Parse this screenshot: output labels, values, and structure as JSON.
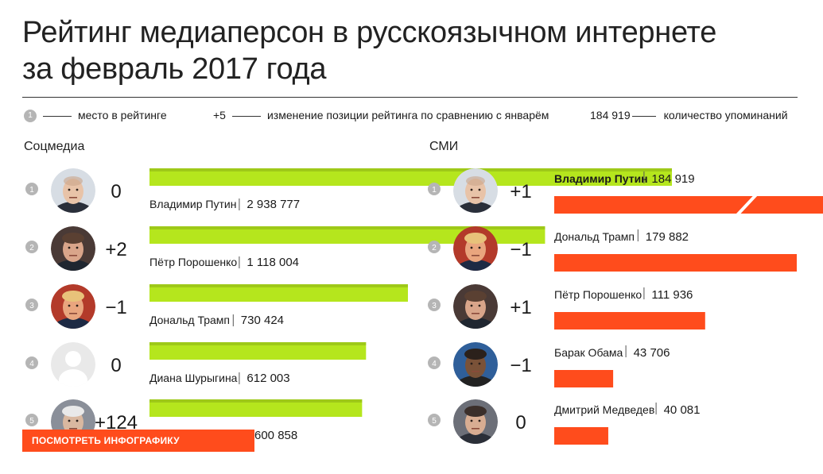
{
  "title": "Рейтинг медиаперсон в русскоязычном интернете за февраль 2017 года",
  "legend": {
    "rank_badge": "1",
    "rank_text": "место в рейтинге",
    "change_example": "+5",
    "change_text": "изменение позиции рейтинга по сравнению с январём",
    "count_example": "184 919",
    "count_text": "количество упоминаний"
  },
  "cta": {
    "label": "ПОСМОТРЕТЬ ИНФОГРАФИКУ ПОЛНОСТЬЮ",
    "arrow": ">>"
  },
  "colors": {
    "social_bar": "#b5e61d",
    "social_bar_shade": "#8fb515",
    "media_bar": "#ff4c1c",
    "badge": "#b5b5b5"
  },
  "chart_data": [
    {
      "type": "bar",
      "title": "Соцмедиа",
      "categories": [
        "Владимир Путин",
        "Пётр Порошенко",
        "Дональд Трамп",
        "Диана Шурыгина",
        ""
      ],
      "ranks": [
        "1",
        "2",
        "3",
        "4",
        "5"
      ],
      "changes": [
        "0",
        "+2",
        "−1",
        "0",
        "+124"
      ],
      "values": [
        2938777,
        1118004,
        730424,
        612003,
        600858
      ],
      "value_labels": [
        "2 938 777",
        "1 118 004",
        "730 424",
        "612 003",
        "600 858"
      ],
      "broken_bars": [
        false,
        false,
        false,
        false,
        false
      ],
      "avatars": [
        "putin-avatar",
        "poroshenko-avatar",
        "trump-avatar",
        "placeholder-avatar",
        "person-avatar"
      ]
    },
    {
      "type": "bar",
      "title": "СМИ",
      "categories": [
        "Владимир Путин",
        "Дональд Трамп",
        "Пётр Порошенко",
        "Барак Обама",
        "Дмитрий Медведев"
      ],
      "ranks": [
        "1",
        "2",
        "3",
        "4",
        "5"
      ],
      "changes": [
        "+1",
        "−1",
        "+1",
        "−1",
        "0"
      ],
      "values": [
        184919,
        179882,
        111936,
        43706,
        40081
      ],
      "value_labels": [
        "184 919",
        "179 882",
        "111 936",
        "43 706",
        "40 081"
      ],
      "broken_bars": [
        true,
        false,
        false,
        false,
        false
      ],
      "avatars": [
        "putin-avatar",
        "trump-avatar",
        "poroshenko-avatar",
        "obama-avatar",
        "medvedev-avatar"
      ]
    }
  ]
}
